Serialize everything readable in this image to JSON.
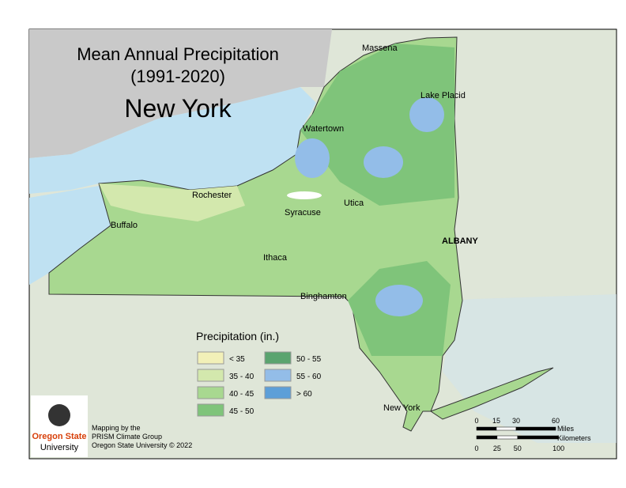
{
  "header": {
    "title_line1": "Mean Annual Precipitation",
    "title_line2": "(1991-2020)",
    "state": "New York"
  },
  "legend": {
    "title": "Precipitation (in.)",
    "items": [
      {
        "label": "< 35",
        "color": "#f2f0b8"
      },
      {
        "label": "35 - 40",
        "color": "#d3e8ad"
      },
      {
        "label": "40 - 45",
        "color": "#a8d890"
      },
      {
        "label": "45 - 50",
        "color": "#7fc47a"
      },
      {
        "label": "50 - 55",
        "color": "#5aa46f"
      },
      {
        "label": "55 - 60",
        "color": "#93bde8"
      },
      {
        "label": "> 60",
        "color": "#5d9fd8"
      }
    ]
  },
  "cities": [
    "Massena",
    "Lake Placid",
    "Watertown",
    "Rochester",
    "Syracuse",
    "Utica",
    "Buffalo",
    "ALBANY",
    "Ithaca",
    "Binghamton",
    "New York"
  ],
  "credits": {
    "logo_line1": "Oregon State",
    "logo_line2": "University",
    "lines": [
      "Mapping by the",
      "PRISM Climate Group",
      "Oregon State University © 2022"
    ]
  },
  "scale": {
    "miles_label": "Miles",
    "km_label": "Kilometers",
    "miles_ticks": [
      0,
      15,
      30,
      60
    ],
    "km_ticks": [
      0,
      25,
      50,
      100
    ]
  }
}
